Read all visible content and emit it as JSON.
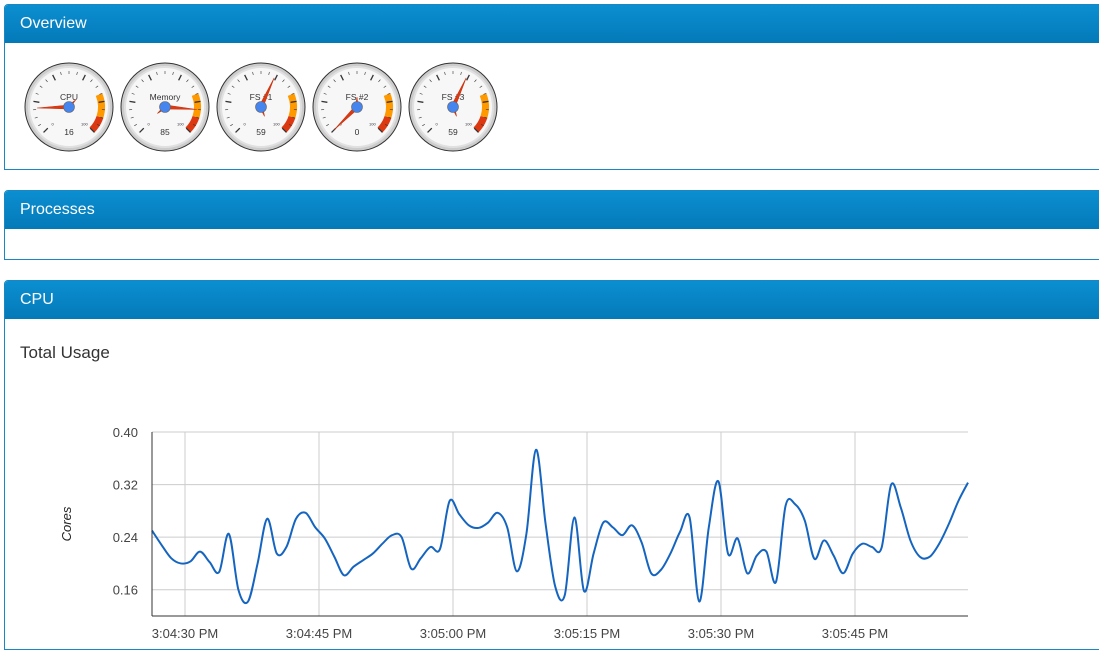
{
  "panels": {
    "overview": "Overview",
    "processes": "Processes",
    "cpu": "CPU"
  },
  "gauges": [
    {
      "label": "CPU",
      "value": 16,
      "min": 0,
      "max": 100
    },
    {
      "label": "Memory",
      "value": 85,
      "min": 0,
      "max": 100
    },
    {
      "label": "FS #1",
      "value": 59,
      "min": 0,
      "max": 100
    },
    {
      "label": "FS #2",
      "value": 0,
      "min": 0,
      "max": 100
    },
    {
      "label": "FS #3",
      "value": 59,
      "min": 0,
      "max": 100
    }
  ],
  "cpu_section": {
    "subtitle": "Total Usage"
  },
  "colors": {
    "panel_header": "#0b8fd1",
    "line": "#1565c0",
    "gauge_red": "#dc3912",
    "gauge_orange": "#ff9900",
    "gauge_needle": "#dc3912",
    "gauge_hub": "#4684ee"
  },
  "chart_data": {
    "type": "line",
    "title": "",
    "xlabel": "",
    "ylabel": "Cores",
    "ylim": [
      0.12,
      0.4
    ],
    "yticks": [
      "0.40",
      "0.32",
      "0.24",
      "0.16"
    ],
    "xticks": [
      "3:04:30 PM",
      "3:04:45 PM",
      "3:05:00 PM",
      "3:05:15 PM",
      "3:05:30 PM",
      "3:05:45 PM"
    ],
    "grid": true,
    "series": [
      {
        "values": [
          0.25,
          0.228,
          0.208,
          0.2,
          0.203,
          0.218,
          0.202,
          0.187,
          0.245,
          0.16,
          0.142,
          0.2,
          0.268,
          0.215,
          0.225,
          0.268,
          0.277,
          0.255,
          0.238,
          0.21,
          0.182,
          0.195,
          0.205,
          0.215,
          0.23,
          0.243,
          0.24,
          0.192,
          0.208,
          0.225,
          0.222,
          0.295,
          0.275,
          0.258,
          0.254,
          0.262,
          0.277,
          0.255,
          0.188,
          0.245,
          0.373,
          0.26,
          0.165,
          0.152,
          0.27,
          0.158,
          0.215,
          0.262,
          0.255,
          0.243,
          0.258,
          0.232,
          0.185,
          0.19,
          0.215,
          0.248,
          0.27,
          0.142,
          0.255,
          0.325,
          0.215,
          0.238,
          0.185,
          0.212,
          0.218,
          0.172,
          0.288,
          0.29,
          0.265,
          0.207,
          0.235,
          0.212,
          0.185,
          0.215,
          0.23,
          0.225,
          0.224,
          0.32,
          0.285,
          0.235,
          0.21,
          0.21,
          0.23,
          0.26,
          0.295,
          0.323
        ]
      }
    ]
  }
}
